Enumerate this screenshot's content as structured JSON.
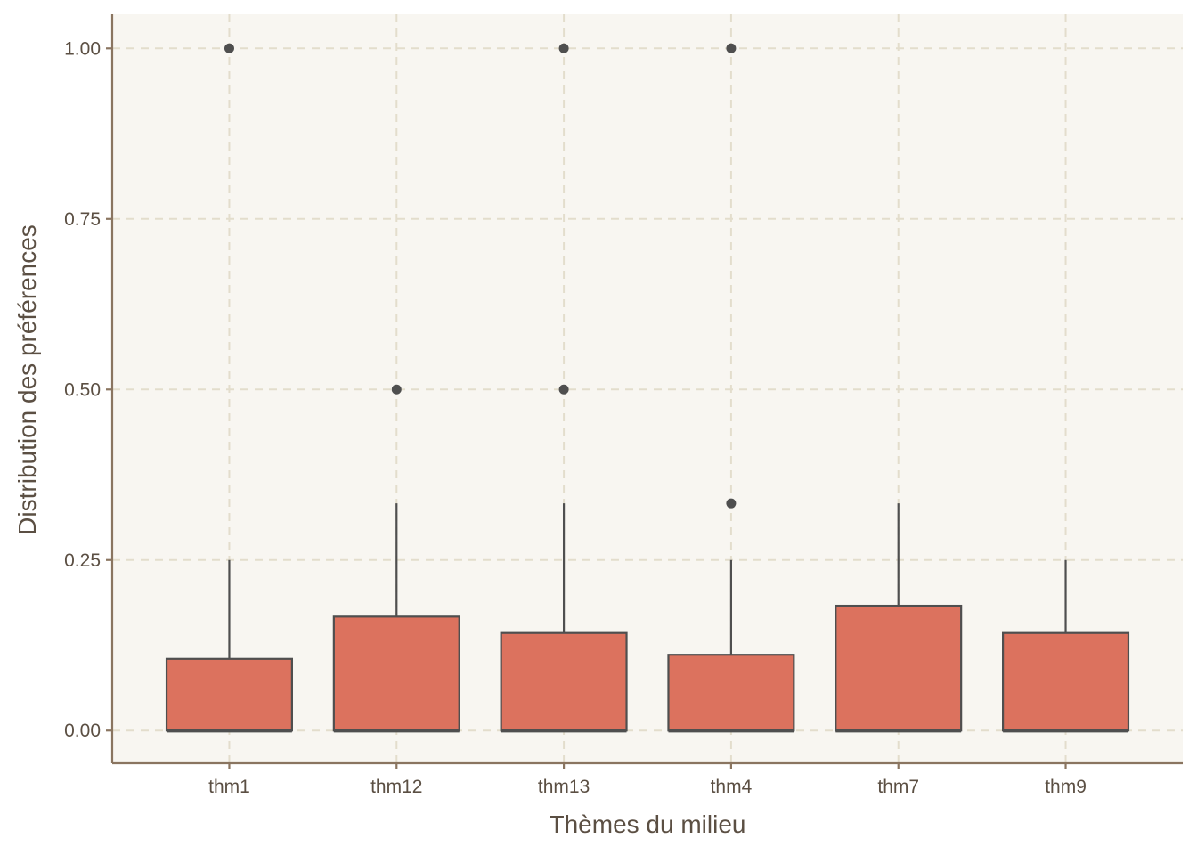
{
  "chart_data": {
    "type": "box",
    "title": "",
    "xlabel": "Thèmes du milieu",
    "ylabel": "Distribution des préférences",
    "categories": [
      "thm1",
      "thm12",
      "thm13",
      "thm4",
      "thm7",
      "thm9"
    ],
    "ylim": [
      -0.048,
      1.05
    ],
    "yticks": [
      0,
      0.25,
      0.5,
      0.75,
      1.0
    ],
    "ytick_labels": [
      "0.00",
      "0.25",
      "0.50",
      "0.75",
      "1.00"
    ],
    "grid": true,
    "legend": "none",
    "boxes": [
      {
        "category": "thm1",
        "min": 0,
        "q1": 0,
        "median": 0,
        "q3": 0.105,
        "max": 0.25,
        "outliers": [
          1.0
        ]
      },
      {
        "category": "thm12",
        "min": 0,
        "q1": 0,
        "median": 0,
        "q3": 0.167,
        "max": 0.333,
        "outliers": [
          0.5
        ]
      },
      {
        "category": "thm13",
        "min": 0,
        "q1": 0,
        "median": 0,
        "q3": 0.143,
        "max": 0.333,
        "outliers": [
          0.5,
          1.0
        ]
      },
      {
        "category": "thm4",
        "min": 0,
        "q1": 0,
        "median": 0,
        "q3": 0.111,
        "max": 0.25,
        "outliers": [
          0.333,
          1.0
        ]
      },
      {
        "category": "thm7",
        "min": 0,
        "q1": 0,
        "median": 0,
        "q3": 0.183,
        "max": 0.333,
        "outliers": []
      },
      {
        "category": "thm9",
        "min": 0,
        "q1": 0,
        "median": 0,
        "q3": 0.143,
        "max": 0.25,
        "outliers": []
      }
    ],
    "colors": {
      "box_fill": "#dc725e",
      "box_stroke": "#4f4f4f",
      "panel_background": "#f8f6f1",
      "grid": "#e3ddcc",
      "axis_line": "#8a7560",
      "text": "#5b4f43"
    }
  }
}
